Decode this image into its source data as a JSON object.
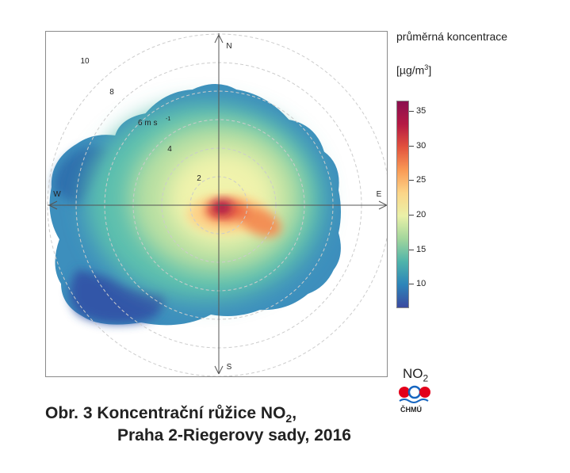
{
  "chart_data": {
    "type": "heatmap",
    "subtype": "polar concentration rose (polar plot)",
    "directions": {
      "north": "N",
      "east": "E",
      "south": "S",
      "west": "W"
    },
    "radial_unit_label": "6 m s",
    "radial_unit_exponent": "-1",
    "radial_ticks": [
      "2",
      "4",
      "8",
      "10"
    ],
    "radial_range": [
      0,
      12
    ],
    "legend": {
      "title": "průměrná koncentrace",
      "unit_prefix": "[µg/m",
      "unit_exp": "3",
      "unit_suffix": "]",
      "ticks": [
        10,
        15,
        20,
        25,
        30,
        35
      ],
      "range": [
        6.5,
        36.5
      ],
      "placement": "right",
      "colors": [
        "#3b4aa0",
        "#2d85b9",
        "#4fb4aa",
        "#a2d69c",
        "#eaf1a8",
        "#fcd588",
        "#f99a55",
        "#e2533e",
        "#b51944",
        "#8a0f4f"
      ]
    },
    "grid": "dashed concentric circles",
    "hotspot": {
      "direction": "near center, slightly east",
      "value": 35
    },
    "secondary_hotspot": {
      "direction": "ESE",
      "value": 27
    }
  },
  "pollutant": {
    "name": "NO",
    "sub": "2"
  },
  "logo": {
    "text": "ČHMÚ",
    "icon": "chmu-logo-icon"
  },
  "caption": {
    "line1_prefix": "Obr. 3  Koncentrační růžice NO",
    "line1_sub": "2",
    "line1_suffix": ",",
    "line2": "Praha 2-Riegerovy sady, 2016"
  }
}
